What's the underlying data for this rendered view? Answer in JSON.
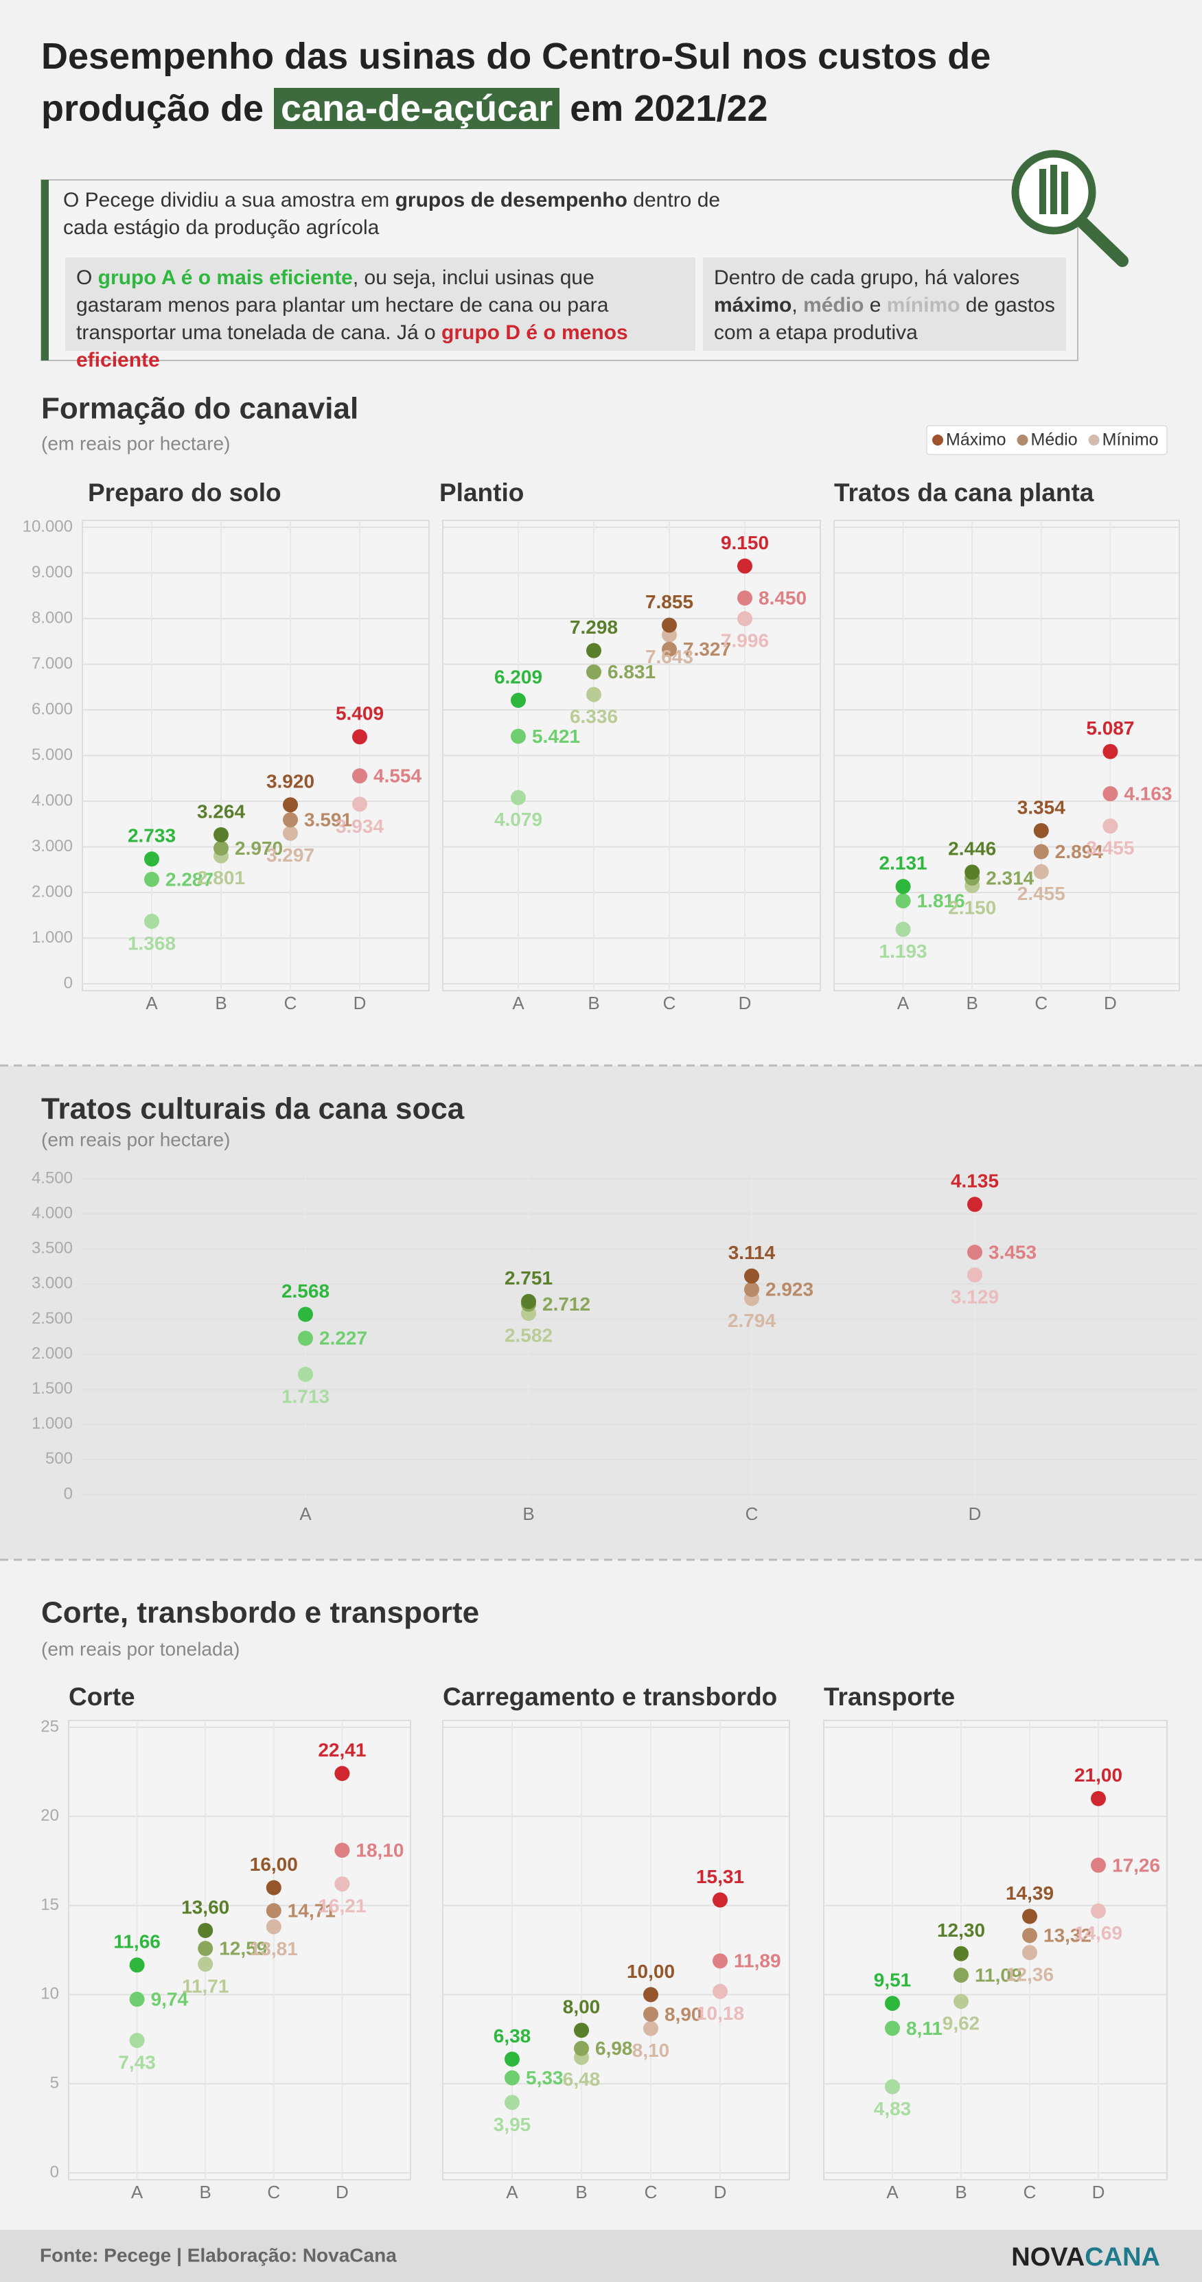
{
  "header": {
    "title": [
      "Desempenho das usinas do Centro-Sul nos custos de",
      "produção de",
      "cana-de-açúcar",
      "em 2021/22"
    ]
  },
  "intro": {
    "text": [
      "O Pecege dividiu a sua amostra em ",
      "grupos de desempenho",
      " dentro de cada estágio da produção agrícola"
    ],
    "note_groups": [
      "O ",
      "grupo A é o mais eficiente",
      ", ou seja, inclui usinas que gastaram menos para plantar um hectare de cana ou para transportar uma tonelada de cana. Já o ",
      "grupo D é o menos eficiente"
    ],
    "note_values": [
      "Dentro de cada grupo, há valores ",
      "máximo",
      ", ",
      "médio",
      " e ",
      "mínimo",
      " de gastos com a etapa produtiva"
    ]
  },
  "sections": [
    {
      "title": "Formação do canavial",
      "subtitle": "(em reais por hectare)"
    },
    {
      "title": "Tratos culturais da cana soca",
      "subtitle": "(em reais por hectare)"
    },
    {
      "title": "Corte, transbordo e transporte",
      "subtitle": "(em reais por tonelada)"
    }
  ],
  "legend": {
    "position": "top-right",
    "entries": [
      {
        "name": "Máximo",
        "color": "#a0522d"
      },
      {
        "name": "Médio",
        "color": "#b08a6a"
      },
      {
        "name": "Mínimo",
        "color": "#d3bcae"
      }
    ]
  },
  "footer": {
    "source": "Fonte: Pecege | Elaboração: NovaCana",
    "logo": [
      "NOVA",
      "CANA"
    ]
  },
  "chart_data": [
    {
      "type": "dot",
      "title": "Preparo do solo",
      "categories": [
        "A",
        "B",
        "C",
        "D"
      ],
      "category_colors": [
        [
          "#2db83d",
          "#6fcf6f",
          "#a8dca0"
        ],
        [
          "#5a7f2b",
          "#8aa65a",
          "#b9cc96"
        ],
        [
          "#94562a",
          "#b98a68",
          "#d6b8a4"
        ],
        [
          "#d0262f",
          "#de7f84",
          "#ebbcbc"
        ]
      ],
      "series": [
        {
          "values": [
            2733,
            3264,
            3920,
            5409
          ],
          "value_labels": [
            "2.733",
            "3.264",
            "3.920",
            "5.409"
          ]
        },
        {
          "values": [
            2287,
            2970,
            3591,
            4554
          ],
          "value_labels": [
            "2.287",
            "2.970",
            "3.591",
            "4.554"
          ]
        },
        {
          "values": [
            1368,
            2801,
            3297,
            3934
          ],
          "value_labels": [
            "1.368",
            "2.801",
            "3.297",
            "3.934"
          ]
        }
      ],
      "ylim": [
        0,
        10000
      ],
      "yticks": [
        0,
        {
          "value": 1000,
          "label": "1.000"
        },
        {
          "value": 2000,
          "label": "2.000"
        },
        {
          "value": 3000,
          "label": "3.000"
        },
        {
          "value": 4000,
          "label": "4.000"
        },
        {
          "value": 5000,
          "label": "5.000"
        },
        {
          "value": 6000,
          "label": "6.000"
        },
        {
          "value": 7000,
          "label": "7.000"
        },
        {
          "value": 8000,
          "label": "8.000"
        },
        {
          "value": 9000,
          "label": "9.000"
        },
        {
          "value": 10000,
          "label": "10.000"
        }
      ],
      "grid": true
    },
    {
      "type": "dot",
      "title": "Plantio",
      "categories": [
        "A",
        "B",
        "C",
        "D"
      ],
      "category_colors": [
        [
          "#2db83d",
          "#6fcf6f",
          "#a8dca0"
        ],
        [
          "#5a7f2b",
          "#8aa65a",
          "#b9cc96"
        ],
        [
          "#94562a",
          "#b98a68",
          "#d6b8a4"
        ],
        [
          "#d0262f",
          "#de7f84",
          "#ebbcbc"
        ]
      ],
      "series": [
        {
          "values": [
            6209,
            7298,
            7855,
            9150
          ],
          "value_labels": [
            "6.209",
            "7.298",
            "7.855",
            "9.150"
          ]
        },
        {
          "values": [
            5421,
            6831,
            7327,
            8450
          ],
          "value_labels": [
            "5.421",
            "6.831",
            "7.327",
            "8.450"
          ]
        },
        {
          "values": [
            4079,
            6336,
            7643,
            7996
          ],
          "value_labels": [
            "4.079",
            "6.336",
            "7.643",
            "7.996"
          ]
        }
      ],
      "ylim": [
        0,
        10000
      ],
      "grid": true
    },
    {
      "type": "dot",
      "title": "Tratos da cana planta",
      "categories": [
        "A",
        "B",
        "C",
        "D"
      ],
      "category_colors": [
        [
          "#2db83d",
          "#6fcf6f",
          "#a8dca0"
        ],
        [
          "#5a7f2b",
          "#8aa65a",
          "#b9cc96"
        ],
        [
          "#94562a",
          "#b98a68",
          "#d6b8a4"
        ],
        [
          "#d0262f",
          "#de7f84",
          "#ebbcbc"
        ]
      ],
      "series": [
        {
          "values": [
            2131,
            2446,
            3354,
            5087
          ],
          "value_labels": [
            "2.131",
            "2.446",
            "3.354",
            "5.087"
          ]
        },
        {
          "values": [
            1816,
            2314,
            2894,
            4163
          ],
          "value_labels": [
            "1.816",
            "2.314",
            "2.894",
            "4.163"
          ]
        },
        {
          "values": [
            1193,
            2150,
            2455,
            3455
          ],
          "value_labels": [
            "1.193",
            "2.150",
            "2.455",
            "3.455"
          ]
        }
      ],
      "ylim": [
        0,
        10000
      ],
      "grid": true
    },
    {
      "type": "dot",
      "categories": [
        "A",
        "B",
        "C",
        "D"
      ],
      "category_colors": [
        [
          "#2db83d",
          "#6fcf6f",
          "#a8dca0"
        ],
        [
          "#5a7f2b",
          "#8aa65a",
          "#b9cc96"
        ],
        [
          "#94562a",
          "#b98a68",
          "#d6b8a4"
        ],
        [
          "#d0262f",
          "#de7f84",
          "#ebbcbc"
        ]
      ],
      "series": [
        {
          "values": [
            2568,
            2751,
            3114,
            4135
          ],
          "value_labels": [
            "2.568",
            "2.751",
            "3.114",
            "4.135"
          ]
        },
        {
          "values": [
            2227,
            2712,
            2923,
            3453
          ],
          "value_labels": [
            "2.227",
            "2.712",
            "2.923",
            "3.453"
          ]
        },
        {
          "values": [
            1713,
            2582,
            2794,
            3129
          ],
          "value_labels": [
            "1.713",
            "2.582",
            "2.794",
            "3.129"
          ]
        }
      ],
      "ylim": [
        0,
        4500
      ],
      "yticks": [
        0,
        500,
        {
          "value": 1000,
          "label": "1.000"
        },
        {
          "value": 1500,
          "label": "1.500"
        },
        {
          "value": 2000,
          "label": "2.000"
        },
        {
          "value": 2500,
          "label": "2.500"
        },
        {
          "value": 3000,
          "label": "3.000"
        },
        {
          "value": 3500,
          "label": "3.500"
        },
        {
          "value": 4000,
          "label": "4.000"
        },
        {
          "value": 4500,
          "label": "4.500"
        }
      ],
      "grid": true
    },
    {
      "type": "dot",
      "title": "Corte",
      "categories": [
        "A",
        "B",
        "C",
        "D"
      ],
      "category_colors": [
        [
          "#2db83d",
          "#6fcf6f",
          "#a8dca0"
        ],
        [
          "#5a7f2b",
          "#8aa65a",
          "#b9cc96"
        ],
        [
          "#94562a",
          "#b98a68",
          "#d6b8a4"
        ],
        [
          "#d0262f",
          "#de7f84",
          "#ebbcbc"
        ]
      ],
      "series": [
        {
          "values": [
            11.66,
            13.6,
            16,
            22.41
          ],
          "value_labels": [
            "11,66",
            "13,60",
            "16,00",
            "22,41"
          ]
        },
        {
          "values": [
            9.74,
            12.59,
            14.71,
            18.1
          ],
          "value_labels": [
            "9,74",
            "12,59",
            "14,71",
            "18,10"
          ]
        },
        {
          "values": [
            7.43,
            11.71,
            13.81,
            16.21
          ],
          "value_labels": [
            "7,43",
            "11,71",
            "13,81",
            "16,21"
          ]
        }
      ],
      "ylim": [
        0,
        25
      ],
      "yticks": [
        0,
        5,
        10,
        15,
        20,
        25
      ],
      "grid": true
    },
    {
      "type": "dot",
      "title": "Carregamento e transbordo",
      "categories": [
        "A",
        "B",
        "C",
        "D"
      ],
      "category_colors": [
        [
          "#2db83d",
          "#6fcf6f",
          "#a8dca0"
        ],
        [
          "#5a7f2b",
          "#8aa65a",
          "#b9cc96"
        ],
        [
          "#94562a",
          "#b98a68",
          "#d6b8a4"
        ],
        [
          "#d0262f",
          "#de7f84",
          "#ebbcbc"
        ]
      ],
      "series": [
        {
          "values": [
            6.38,
            8,
            10,
            15.31
          ],
          "value_labels": [
            "6,38",
            "8,00",
            "10,00",
            "15,31"
          ]
        },
        {
          "values": [
            5.33,
            6.98,
            8.9,
            11.89
          ],
          "value_labels": [
            "5,33",
            "6,98",
            "8,90",
            "11,89"
          ]
        },
        {
          "values": [
            3.95,
            6.48,
            8.1,
            10.18
          ],
          "value_labels": [
            "3,95",
            "6,48",
            "8,10",
            "10,18"
          ]
        }
      ],
      "ylim": [
        0,
        25
      ],
      "grid": true
    },
    {
      "type": "dot",
      "title": "Transporte",
      "categories": [
        "A",
        "B",
        "C",
        "D"
      ],
      "category_colors": [
        [
          "#2db83d",
          "#6fcf6f",
          "#a8dca0"
        ],
        [
          "#5a7f2b",
          "#8aa65a",
          "#b9cc96"
        ],
        [
          "#94562a",
          "#b98a68",
          "#d6b8a4"
        ],
        [
          "#d0262f",
          "#de7f84",
          "#ebbcbc"
        ]
      ],
      "series": [
        {
          "values": [
            9.51,
            12.3,
            14.39,
            21
          ],
          "value_labels": [
            "9,51",
            "12,30",
            "14,39",
            "21,00"
          ]
        },
        {
          "values": [
            8.11,
            11.09,
            13.32,
            17.26
          ],
          "value_labels": [
            "8,11",
            "11,09",
            "13,32",
            "17,26"
          ]
        },
        {
          "values": [
            4.83,
            9.62,
            12.36,
            14.69
          ],
          "value_labels": [
            "4,83",
            "9,62",
            "12,36",
            "14,69"
          ]
        }
      ],
      "ylim": [
        0,
        25
      ],
      "grid": true
    }
  ]
}
